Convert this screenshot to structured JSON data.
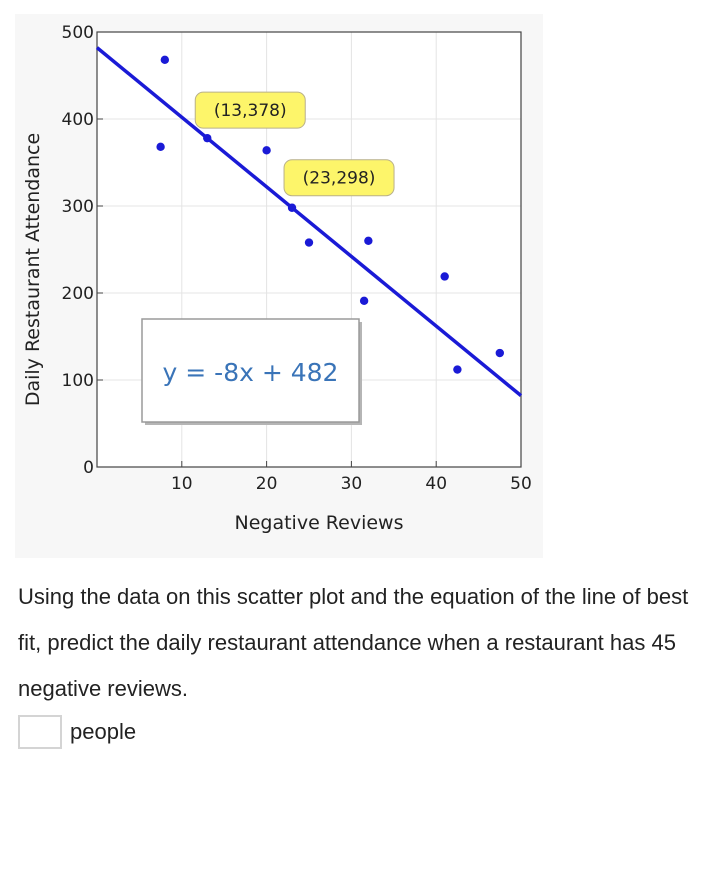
{
  "chart_data": {
    "type": "scatter",
    "xlabel": "Negative Reviews",
    "ylabel": "Daily Restaurant Attendance",
    "xlim": [
      0,
      50
    ],
    "ylim": [
      0,
      500
    ],
    "x_ticks": [
      10,
      20,
      30,
      40,
      50
    ],
    "y_ticks": [
      0,
      100,
      200,
      300,
      400,
      500
    ],
    "grid": true,
    "series": [
      {
        "points": [
          [
            8,
            468
          ],
          [
            7.5,
            368
          ],
          [
            13,
            378
          ],
          [
            20,
            364
          ],
          [
            23,
            298
          ],
          [
            25,
            258
          ],
          [
            32,
            260
          ],
          [
            31.5,
            191
          ],
          [
            41,
            219
          ],
          [
            42.5,
            112
          ],
          [
            47.5,
            131
          ]
        ],
        "color": "#1a1ad6"
      }
    ],
    "trendline": {
      "slope": -8,
      "intercept": 482,
      "color": "#1a1ad6"
    },
    "annotations": [
      {
        "text": "(13,378)",
        "x": 13,
        "y": 378
      },
      {
        "text": "(23,298)",
        "x": 23,
        "y": 298
      }
    ],
    "equation_box": {
      "text": "y = -8x + 482"
    }
  },
  "question": {
    "text": "Using the data on this scatter plot and the equation of the line of best fit, predict the daily restaurant attendance when a restaurant has 45 negative reviews."
  },
  "answer": {
    "value": "",
    "unit": "people"
  }
}
